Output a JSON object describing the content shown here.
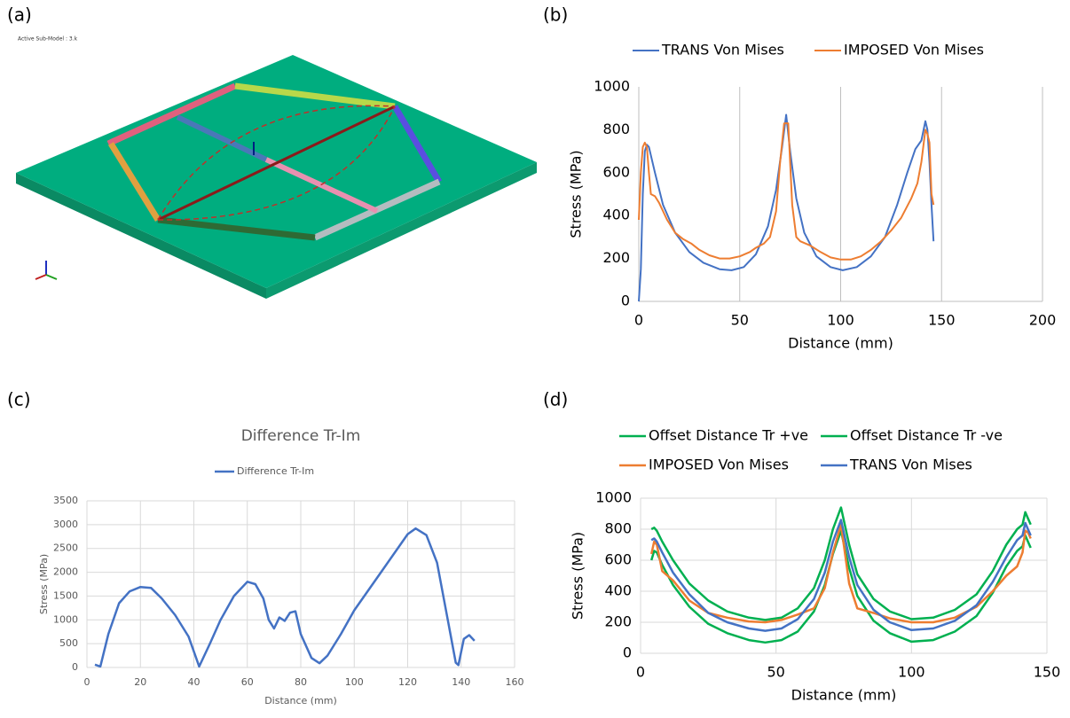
{
  "panels": [
    "(a)",
    "(b)",
    "(c)",
    "(d)"
  ],
  "model_caption": "Active Sub-Model : 3.k",
  "chart_data": [
    {
      "type": "line",
      "xlabel": "Distance (mm)",
      "ylabel": "Stress (MPa)",
      "xlim": [
        0,
        200
      ],
      "xticks": [
        0,
        50,
        100,
        150,
        200
      ],
      "ylim": [
        0,
        1000
      ],
      "yticks": [
        0,
        200,
        400,
        600,
        800,
        1000
      ],
      "grid": "vertical",
      "series": [
        {
          "name": "TRANS Von Mises",
          "color": "#4472c4",
          "x": [
            0,
            1,
            2,
            3,
            4,
            5,
            8,
            12,
            18,
            25,
            32,
            40,
            46,
            52,
            58,
            64,
            68,
            71,
            73,
            75,
            78,
            82,
            88,
            95,
            101,
            108,
            115,
            122,
            128,
            133,
            137,
            140,
            142,
            143,
            144,
            145,
            146
          ],
          "values": [
            0,
            150,
            500,
            700,
            730,
            720,
            600,
            450,
            320,
            230,
            180,
            150,
            145,
            160,
            220,
            350,
            520,
            720,
            870,
            700,
            480,
            320,
            210,
            160,
            145,
            160,
            210,
            300,
            450,
            600,
            710,
            750,
            840,
            800,
            650,
            450,
            280
          ]
        },
        {
          "name": "IMPOSED Von Mises",
          "color": "#ed7d31",
          "x": [
            0,
            1,
            2,
            3,
            4,
            5,
            6,
            8,
            10,
            14,
            18,
            22,
            26,
            30,
            35,
            40,
            45,
            50,
            55,
            58,
            62,
            65,
            68,
            70,
            72,
            74,
            76,
            78,
            80,
            85,
            90,
            95,
            100,
            105,
            110,
            115,
            120,
            125,
            130,
            135,
            138,
            140,
            142,
            143,
            144,
            145,
            146
          ],
          "values": [
            380,
            600,
            720,
            740,
            720,
            600,
            500,
            490,
            460,
            380,
            320,
            290,
            270,
            240,
            215,
            200,
            200,
            210,
            230,
            250,
            270,
            300,
            420,
            650,
            830,
            830,
            450,
            300,
            280,
            260,
            230,
            205,
            195,
            195,
            210,
            240,
            280,
            330,
            390,
            480,
            550,
            650,
            800,
            780,
            740,
            500,
            450
          ]
        }
      ]
    },
    {
      "type": "line",
      "title": "Difference Tr-Im",
      "xlabel": "Distance (mm)",
      "ylabel": "Stress (MPa)",
      "xlim": [
        0,
        160
      ],
      "xticks": [
        0,
        20,
        40,
        60,
        80,
        100,
        120,
        140,
        160
      ],
      "ylim": [
        0,
        3500
      ],
      "yticks": [
        0,
        500,
        1000,
        1500,
        2000,
        2500,
        3000,
        3500
      ],
      "grid": "both",
      "series": [
        {
          "name": "Difference Tr-Im",
          "color": "#4472c4",
          "x": [
            3,
            5,
            8,
            12,
            16,
            20,
            24,
            28,
            33,
            38,
            42,
            46,
            50,
            55,
            60,
            63,
            66,
            68,
            70,
            72,
            74,
            76,
            78,
            80,
            84,
            87,
            90,
            95,
            100,
            110,
            120,
            123,
            127,
            131,
            135,
            138,
            139,
            141,
            143,
            145
          ],
          "values": [
            60,
            20,
            700,
            1350,
            1600,
            1690,
            1670,
            1450,
            1100,
            650,
            20,
            500,
            1000,
            1500,
            1800,
            1750,
            1450,
            1000,
            820,
            1050,
            980,
            1150,
            1180,
            700,
            200,
            90,
            250,
            700,
            1200,
            2000,
            2800,
            2920,
            2780,
            2200,
            1000,
            100,
            50,
            600,
            680,
            560
          ]
        }
      ]
    },
    {
      "type": "line",
      "xlabel": "Distance (mm)",
      "ylabel": "Stress (MPa)",
      "xlim": [
        0,
        150
      ],
      "xticks": [
        0,
        50,
        100,
        150
      ],
      "ylim": [
        0,
        1000
      ],
      "yticks": [
        0,
        200,
        400,
        600,
        800,
        1000
      ],
      "grid": "both",
      "x": [
        4,
        5,
        6,
        8,
        12,
        18,
        25,
        32,
        40,
        46,
        52,
        58,
        64,
        68,
        71,
        74,
        77,
        80,
        86,
        92,
        100,
        108,
        116,
        124,
        130,
        135,
        139,
        141,
        142,
        143,
        144
      ],
      "series": [
        {
          "name": "Offset Distance Tr +ve",
          "color": "#00b050",
          "values": [
            800,
            810,
            790,
            720,
            600,
            450,
            340,
            270,
            230,
            215,
            230,
            290,
            420,
            600,
            800,
            940,
            700,
            510,
            350,
            270,
            220,
            230,
            280,
            380,
            530,
            700,
            800,
            830,
            910,
            870,
            830
          ]
        },
        {
          "name": "Offset Distance Tr -ve",
          "color": "#00b050",
          "values": [
            600,
            660,
            650,
            570,
            440,
            300,
            190,
            130,
            85,
            70,
            85,
            140,
            270,
            440,
            640,
            790,
            550,
            370,
            210,
            130,
            75,
            85,
            140,
            240,
            390,
            560,
            660,
            690,
            760,
            720,
            680
          ]
        },
        {
          "name": "IMPOSED Von Mises",
          "color": "#ed7d31",
          "values": [
            640,
            720,
            700,
            530,
            470,
            340,
            260,
            230,
            205,
            200,
            215,
            250,
            290,
            420,
            650,
            830,
            450,
            290,
            260,
            225,
            200,
            200,
            230,
            300,
            400,
            500,
            560,
            650,
            790,
            780,
            740
          ]
        },
        {
          "name": "TRANS Von Mises",
          "color": "#4472c4",
          "values": [
            730,
            740,
            720,
            650,
            520,
            380,
            260,
            200,
            160,
            145,
            160,
            220,
            350,
            520,
            720,
            860,
            620,
            440,
            280,
            200,
            150,
            160,
            210,
            310,
            460,
            620,
            730,
            760,
            840,
            800,
            760
          ]
        }
      ]
    }
  ]
}
